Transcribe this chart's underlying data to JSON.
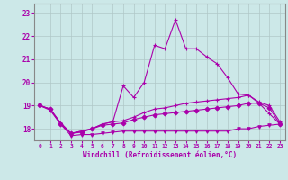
{
  "background_color": "#cce8e8",
  "grid_color": "#b0c8c8",
  "line_color": "#aa00aa",
  "spine_color": "#888888",
  "xlim": [
    -0.5,
    23.5
  ],
  "ylim": [
    17.5,
    23.4
  ],
  "yticks": [
    18,
    19,
    20,
    21,
    22,
    23
  ],
  "xticks": [
    0,
    1,
    2,
    3,
    4,
    5,
    6,
    7,
    8,
    9,
    10,
    11,
    12,
    13,
    14,
    15,
    16,
    17,
    18,
    19,
    20,
    21,
    22,
    23
  ],
  "xlabel": "Windchill (Refroidissement éolien,°C)",
  "lines": [
    {
      "x": [
        0,
        1,
        2,
        3,
        4,
        5,
        6,
        7,
        8,
        9,
        10,
        11,
        12,
        13,
        14,
        15,
        16,
        17,
        18,
        19,
        20,
        21,
        22,
        23
      ],
      "y": [
        19.0,
        18.8,
        18.2,
        17.7,
        17.75,
        17.75,
        17.8,
        17.85,
        17.9,
        17.9,
        17.9,
        17.9,
        17.9,
        17.9,
        17.9,
        17.9,
        17.9,
        17.9,
        17.9,
        18.0,
        18.0,
        18.1,
        18.15,
        18.2
      ],
      "marker": "v",
      "ms": 2.5
    },
    {
      "x": [
        0,
        1,
        2,
        3,
        4,
        5,
        6,
        7,
        8,
        9,
        10,
        11,
        12,
        13,
        14,
        15,
        16,
        17,
        18,
        19,
        20,
        21,
        22,
        23
      ],
      "y": [
        19.0,
        18.85,
        18.2,
        17.8,
        17.85,
        18.0,
        18.15,
        18.2,
        18.25,
        18.4,
        18.5,
        18.6,
        18.65,
        18.7,
        18.75,
        18.8,
        18.85,
        18.9,
        18.95,
        19.0,
        19.1,
        19.1,
        18.9,
        18.2
      ],
      "marker": "D",
      "ms": 2.5
    },
    {
      "x": [
        0,
        1,
        2,
        3,
        4,
        5,
        6,
        7,
        8,
        9,
        10,
        11,
        12,
        13,
        14,
        15,
        16,
        17,
        18,
        19,
        20,
        21,
        22,
        23
      ],
      "y": [
        19.0,
        18.85,
        18.25,
        17.8,
        17.9,
        18.0,
        18.2,
        18.3,
        18.35,
        18.5,
        18.7,
        18.85,
        18.9,
        19.0,
        19.1,
        19.15,
        19.2,
        19.25,
        19.3,
        19.35,
        19.45,
        19.15,
        19.0,
        18.3
      ],
      "marker": "+",
      "ms": 3.5
    },
    {
      "x": [
        0,
        1,
        2,
        3,
        4,
        5,
        6,
        7,
        8,
        9,
        10,
        11,
        12,
        13,
        14,
        15,
        16,
        17,
        18,
        19,
        20,
        21,
        22,
        23
      ],
      "y": [
        19.0,
        18.85,
        18.25,
        17.8,
        17.9,
        18.0,
        18.2,
        18.3,
        19.85,
        19.35,
        20.0,
        21.6,
        21.45,
        22.7,
        21.45,
        21.45,
        21.1,
        20.8,
        20.2,
        19.5,
        19.45,
        19.1,
        18.65,
        18.2
      ],
      "marker": "+",
      "ms": 3.5
    }
  ]
}
